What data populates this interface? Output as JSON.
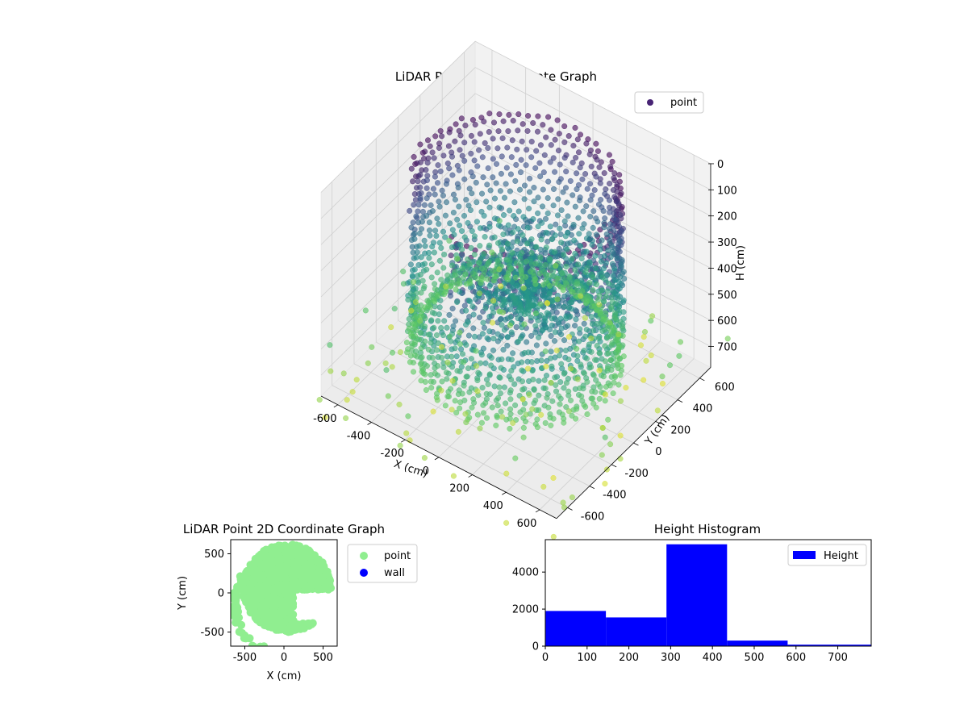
{
  "chart_data": [
    {
      "type": "scatter",
      "projection": "3d",
      "title": "LiDAR Point 3D Coordinate Graph",
      "xlabel": "X (cm)",
      "ylabel": "Y (cm)",
      "zlabel": "H (cm)",
      "xlim": [
        -700,
        700
      ],
      "ylim": [
        -700,
        700
      ],
      "zlim": [
        0,
        780
      ],
      "z_axis_inverted": true,
      "xticks": [
        -600,
        -400,
        -200,
        0,
        200,
        400,
        600
      ],
      "yticks": [
        -600,
        -400,
        -200,
        0,
        200,
        400,
        600
      ],
      "zticks": [
        0,
        100,
        200,
        300,
        400,
        500,
        600,
        700
      ],
      "colormap": "viridis (colored by height)",
      "legend": {
        "position": "top-right",
        "entries": [
          {
            "label": "point",
            "color": "#482475"
          }
        ]
      },
      "grid": true
    },
    {
      "type": "scatter",
      "title": "LiDAR Point 2D Coordinate Graph",
      "xlabel": "X (cm)",
      "ylabel": "Y (cm)",
      "xlim": [
        -680,
        680
      ],
      "ylim": [
        -680,
        680
      ],
      "xticks": [
        -500,
        0,
        500
      ],
      "yticks": [
        -500,
        0,
        500
      ],
      "series": [
        {
          "name": "point",
          "color": "#90ee90"
        },
        {
          "name": "wall",
          "color": "#0000ff"
        }
      ],
      "legend": {
        "position": "outside-right"
      }
    },
    {
      "type": "bar",
      "subtype": "histogram",
      "title": "Height Histogram",
      "bin_edges": [
        0,
        145,
        290,
        435,
        580,
        725,
        780
      ],
      "values": [
        1900,
        1550,
        5500,
        300,
        80,
        80
      ],
      "xlim": [
        0,
        780
      ],
      "ylim": [
        0,
        5750
      ],
      "xticks": [
        0,
        100,
        200,
        300,
        400,
        500,
        600,
        700
      ],
      "yticks": [
        0,
        2000,
        4000
      ],
      "series": [
        {
          "name": "Height",
          "color": "#0000ff"
        }
      ],
      "legend": {
        "position": "top-right"
      }
    }
  ]
}
